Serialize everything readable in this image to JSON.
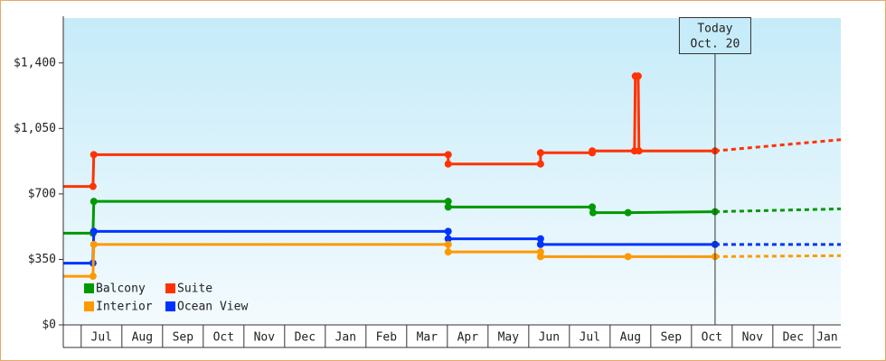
{
  "chart_data": {
    "type": "line",
    "annotation": {
      "lines": [
        "Today",
        "Oct. 20"
      ],
      "x": 15.58
    },
    "months": [
      "Jul",
      "Aug",
      "Sep",
      "Oct",
      "Nov",
      "Dec",
      "Jan",
      "Feb",
      "Mar",
      "Apr",
      "May",
      "Jun",
      "Jul",
      "Aug",
      "Sep",
      "Oct",
      "Nov",
      "Dec",
      "Jan"
    ],
    "xlim": [
      -0.44,
      18.67
    ],
    "ylim": [
      0,
      1640
    ],
    "yticks": [
      {
        "value": 0,
        "label": "$0"
      },
      {
        "value": 350,
        "label": "$350"
      },
      {
        "value": 700,
        "label": "$700"
      },
      {
        "value": 1050,
        "label": "$1,050"
      },
      {
        "value": 1400,
        "label": "$1,400"
      }
    ],
    "series": [
      {
        "name": "Suite",
        "color": "#ff3300",
        "x": [
          -0.44,
          0.29,
          0.31,
          9.02,
          9.02,
          11.29,
          11.29,
          12.56,
          12.56,
          13.6,
          13.62,
          13.69,
          13.71,
          15.58
        ],
        "values": [
          740,
          740,
          910,
          910,
          860,
          860,
          920,
          920,
          930,
          930,
          1330,
          1330,
          930,
          930
        ],
        "forecast": {
          "x": [
            15.58,
            18.67
          ],
          "values": [
            930,
            990
          ]
        }
      },
      {
        "name": "Balcony",
        "color": "#009900",
        "x": [
          -0.44,
          0.29,
          0.31,
          9.02,
          9.02,
          12.56,
          12.58,
          13.44,
          15.58
        ],
        "values": [
          490,
          490,
          660,
          660,
          630,
          630,
          600,
          600,
          605
        ],
        "forecast": {
          "x": [
            15.58,
            18.67
          ],
          "values": [
            605,
            620
          ]
        }
      },
      {
        "name": "Ocean View",
        "color": "#0033ff",
        "x": [
          -0.44,
          0.29,
          0.31,
          9.02,
          9.02,
          11.29,
          11.29,
          15.58
        ],
        "values": [
          330,
          330,
          500,
          500,
          460,
          460,
          430,
          430
        ],
        "forecast": {
          "x": [
            15.58,
            18.67
          ],
          "values": [
            430,
            430
          ]
        }
      },
      {
        "name": "Interior",
        "color": "#ff9900",
        "x": [
          -0.44,
          0.29,
          0.31,
          9.02,
          9.02,
          11.29,
          11.29,
          13.44,
          15.58
        ],
        "values": [
          260,
          260,
          430,
          430,
          390,
          390,
          365,
          365,
          365
        ],
        "forecast": {
          "x": [
            15.58,
            18.67
          ],
          "values": [
            365,
            370
          ]
        }
      }
    ],
    "legend_order": [
      1,
      0,
      3,
      2
    ]
  }
}
